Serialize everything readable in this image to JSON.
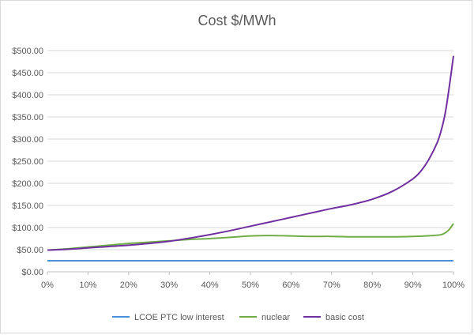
{
  "chart_data": {
    "type": "line",
    "title": "Cost $/MWh",
    "xlabel": "",
    "ylabel": "",
    "x_tick_labels": [
      "0%",
      "10%",
      "20%",
      "30%",
      "40%",
      "50%",
      "60%",
      "70%",
      "80%",
      "90%",
      "100%"
    ],
    "y_tick_labels": [
      "$0.00",
      "$50.00",
      "$100.00",
      "$150.00",
      "$200.00",
      "$250.00",
      "$300.00",
      "$350.00",
      "$400.00",
      "$450.00",
      "$500.00"
    ],
    "xlim": [
      0,
      100
    ],
    "ylim": [
      0,
      500
    ],
    "grid": true,
    "legend_position": "bottom",
    "series": [
      {
        "name": "LCOE PTC low interest",
        "color": "#4a90d9",
        "x": [
          0,
          100
        ],
        "values": [
          25,
          25
        ]
      },
      {
        "name": "nuclear",
        "color": "#70ad47",
        "x": [
          0,
          5,
          10,
          15,
          20,
          25,
          30,
          35,
          40,
          45,
          50,
          55,
          60,
          65,
          70,
          75,
          80,
          85,
          90,
          95,
          97,
          98,
          99,
          100
        ],
        "values": [
          49,
          52,
          56,
          60,
          64,
          67,
          70,
          73,
          75,
          78,
          81,
          82,
          81,
          80,
          80,
          79,
          79,
          79,
          80,
          82,
          84,
          88,
          96,
          109
        ]
      },
      {
        "name": "basic cost",
        "color": "#7030a0",
        "x": [
          0,
          5,
          10,
          15,
          20,
          25,
          30,
          35,
          40,
          45,
          50,
          55,
          60,
          65,
          70,
          75,
          80,
          85,
          90,
          92,
          94,
          96,
          97,
          98,
          99,
          100
        ],
        "values": [
          49,
          51,
          54,
          57,
          60,
          64,
          69,
          76,
          84,
          93,
          103,
          113,
          123,
          133,
          143,
          152,
          164,
          182,
          210,
          228,
          255,
          292,
          320,
          360,
          420,
          488
        ]
      }
    ]
  }
}
